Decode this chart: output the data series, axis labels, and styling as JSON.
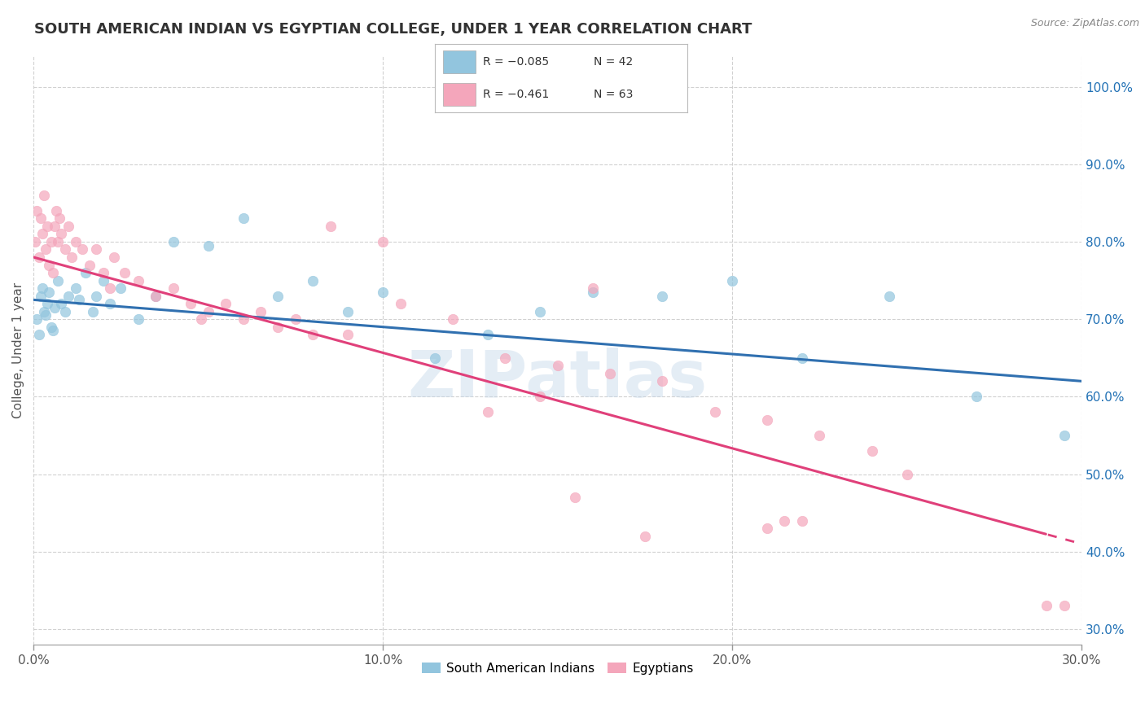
{
  "title": "SOUTH AMERICAN INDIAN VS EGYPTIAN COLLEGE, UNDER 1 YEAR CORRELATION CHART",
  "source": "Source: ZipAtlas.com",
  "ylabel": "College, Under 1 year",
  "xlabel_vals": [
    0.0,
    10.0,
    20.0,
    30.0
  ],
  "ylabel_right_vals": [
    30.0,
    40.0,
    50.0,
    60.0,
    70.0,
    80.0,
    90.0,
    100.0
  ],
  "xlim": [
    0.0,
    30.0
  ],
  "ylim": [
    28.0,
    104.0
  ],
  "blue_color": "#92c5de",
  "pink_color": "#f4a6bb",
  "blue_line_color": "#3070b0",
  "pink_line_color": "#e0407a",
  "R_blue": -0.085,
  "N_blue": 42,
  "R_pink": -0.461,
  "N_pink": 63,
  "watermark": "ZIPatlas",
  "blue_scatter_x": [
    0.1,
    0.2,
    0.15,
    0.3,
    0.25,
    0.4,
    0.35,
    0.5,
    0.45,
    0.6,
    0.55,
    0.7,
    0.8,
    0.9,
    1.0,
    1.2,
    1.3,
    1.5,
    1.7,
    1.8,
    2.0,
    2.2,
    2.5,
    3.0,
    3.5,
    4.0,
    5.0,
    6.0,
    7.0,
    8.0,
    9.0,
    10.0,
    11.5,
    13.0,
    14.5,
    16.0,
    18.0,
    20.0,
    22.0,
    24.5,
    27.0,
    29.5
  ],
  "blue_scatter_y": [
    70.0,
    73.0,
    68.0,
    71.0,
    74.0,
    72.0,
    70.5,
    69.0,
    73.5,
    71.5,
    68.5,
    75.0,
    72.0,
    71.0,
    73.0,
    74.0,
    72.5,
    76.0,
    71.0,
    73.0,
    75.0,
    72.0,
    74.0,
    70.0,
    73.0,
    80.0,
    79.5,
    83.0,
    73.0,
    75.0,
    71.0,
    73.5,
    65.0,
    68.0,
    71.0,
    73.5,
    73.0,
    75.0,
    65.0,
    73.0,
    60.0,
    55.0
  ],
  "pink_scatter_x": [
    0.05,
    0.1,
    0.15,
    0.2,
    0.25,
    0.3,
    0.35,
    0.4,
    0.45,
    0.5,
    0.55,
    0.6,
    0.65,
    0.7,
    0.75,
    0.8,
    0.9,
    1.0,
    1.1,
    1.2,
    1.4,
    1.6,
    1.8,
    2.0,
    2.3,
    2.6,
    3.0,
    3.5,
    4.0,
    4.5,
    5.0,
    5.5,
    6.0,
    6.5,
    7.0,
    7.5,
    8.0,
    9.0,
    10.5,
    12.0,
    13.5,
    15.0,
    16.5,
    18.0,
    19.5,
    21.0,
    22.5,
    24.0,
    14.5,
    10.0,
    8.5,
    2.2,
    4.8,
    22.0,
    16.0,
    29.5,
    15.5,
    21.5,
    13.0,
    25.0,
    29.0,
    17.5,
    21.0
  ],
  "pink_scatter_y": [
    80.0,
    84.0,
    78.0,
    83.0,
    81.0,
    86.0,
    79.0,
    82.0,
    77.0,
    80.0,
    76.0,
    82.0,
    84.0,
    80.0,
    83.0,
    81.0,
    79.0,
    82.0,
    78.0,
    80.0,
    79.0,
    77.0,
    79.0,
    76.0,
    78.0,
    76.0,
    75.0,
    73.0,
    74.0,
    72.0,
    71.0,
    72.0,
    70.0,
    71.0,
    69.0,
    70.0,
    68.0,
    68.0,
    72.0,
    70.0,
    65.0,
    64.0,
    63.0,
    62.0,
    58.0,
    57.0,
    55.0,
    53.0,
    60.0,
    80.0,
    82.0,
    74.0,
    70.0,
    44.0,
    74.0,
    33.0,
    47.0,
    44.0,
    58.0,
    50.0,
    33.0,
    42.0,
    43.0
  ],
  "grid_color": "#cccccc",
  "bg_color": "#ffffff",
  "label_color": "#2171b5",
  "title_color": "#333333",
  "tick_color": "#555555"
}
